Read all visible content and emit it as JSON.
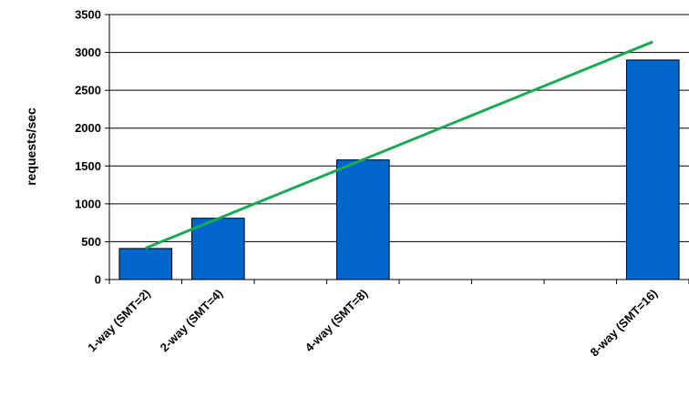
{
  "chart_data": {
    "type": "bar",
    "title": "",
    "xlabel": "",
    "ylabel": "requests/sec",
    "ylim": [
      0,
      3500
    ],
    "yticks": [
      0,
      500,
      1000,
      1500,
      2000,
      2500,
      3000,
      3500
    ],
    "grid": true,
    "x_slots": 8,
    "categories": [
      {
        "label": "1-way (SMT=2)",
        "slot": 1
      },
      {
        "label": "2-way (SMT=4)",
        "slot": 2
      },
      {
        "label": "4-way (SMT=8)",
        "slot": 4
      },
      {
        "label": "8-way (SMT=16)",
        "slot": 8
      }
    ],
    "series": [
      {
        "type": "bar",
        "color": "#0066CC",
        "values": [
          410,
          810,
          1580,
          2900
        ]
      },
      {
        "type": "line",
        "color": "#1AAA55",
        "from": {
          "slot": 1,
          "value": 415
        },
        "to": {
          "slot": 8,
          "value": 3140
        }
      }
    ]
  }
}
